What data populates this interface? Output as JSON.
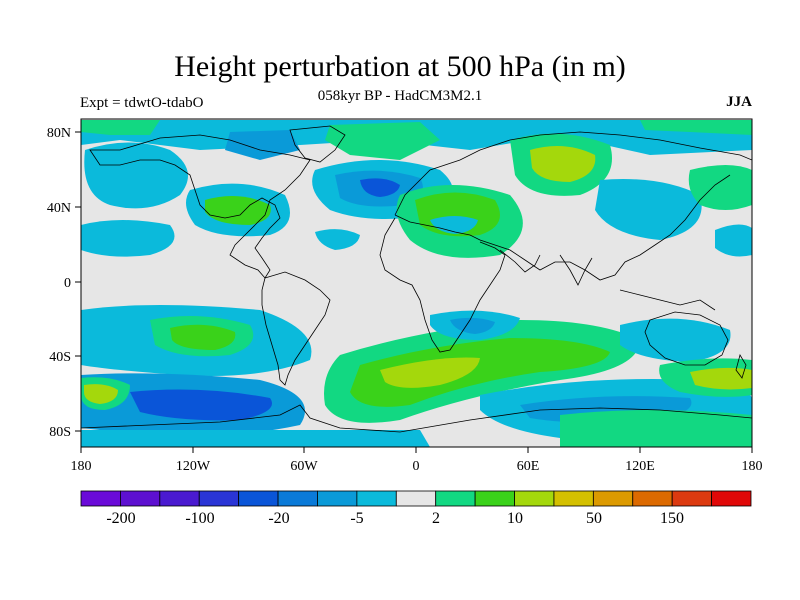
{
  "header": {
    "title": "Height perturbation at 500 hPa (in m)",
    "subtitle": "058kyr BP - HadCM3M2.1",
    "left_label": "Expt = tdwtO-tdabO",
    "right_label": "JJA"
  },
  "axes": {
    "x_ticks": [
      "180",
      "120W",
      "60W",
      "0",
      "60E",
      "120E",
      "180"
    ],
    "y_ticks": [
      "80N",
      "40N",
      "0",
      "40S",
      "80S"
    ],
    "lon_range": [
      -180,
      180
    ],
    "lat_range": [
      -90,
      90
    ]
  },
  "colorbar": {
    "colors": [
      "#6a0ad8",
      "#5d10d0",
      "#4a1ad0",
      "#2a35d6",
      "#0a55d8",
      "#0a7ad8",
      "#0a9ad8",
      "#0bbadb",
      "#e6e6e6",
      "#12d882",
      "#3ad21a",
      "#a4d80c",
      "#d4c000",
      "#dc9a00",
      "#dc6a00",
      "#dc3a10",
      "#e00808"
    ],
    "labels": [
      "-200",
      "-100",
      "-20",
      "-5",
      "2",
      "10",
      "50",
      "150"
    ]
  },
  "map_colors": {
    "background": "#e6e6e6",
    "weak_neg": "#0bbadb",
    "mid_neg": "#0a9ad8",
    "strong_neg": "#0a7ad8",
    "very_strong_neg": "#0a55d8",
    "weak_pos": "#12d882",
    "mid_pos": "#3ad21a",
    "strong_pos": "#a4d80c",
    "coast": "#000000"
  }
}
